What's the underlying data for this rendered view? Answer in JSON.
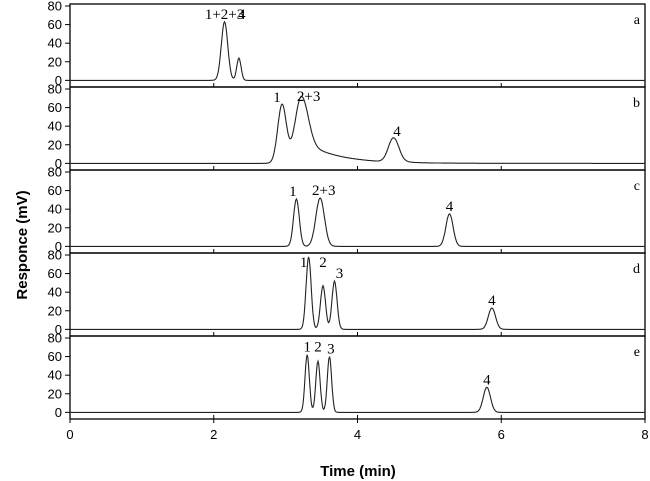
{
  "chart_data": {
    "type": "line",
    "xlabel": "Time (min)",
    "ylabel": "Responce (mV)",
    "xlim": [
      0,
      8
    ],
    "xticks": [
      "0",
      "2",
      "4",
      "6",
      "8"
    ],
    "ylim": [
      -5,
      80
    ],
    "yticks": [
      "0",
      "20",
      "40",
      "60",
      "80"
    ],
    "grid": false,
    "panels": [
      {
        "label": "a",
        "peaks": [
          {
            "t": 2.15,
            "h": 63,
            "w": 0.045,
            "tail": 0
          },
          {
            "t": 2.35,
            "h": 24,
            "w": 0.03,
            "tail": 0
          }
        ],
        "peak_labels": [
          {
            "text": "1+2+3",
            "t": 2.15
          },
          {
            "text": "4",
            "t": 2.39
          }
        ]
      },
      {
        "label": "b",
        "peaks": [
          {
            "t": 2.95,
            "h": 63,
            "w": 0.06,
            "tail": 0
          },
          {
            "t": 3.22,
            "h": 72,
            "w": 0.09,
            "tail": 0.45
          },
          {
            "t": 4.5,
            "h": 26,
            "w": 0.07,
            "tail": 0.08
          }
        ],
        "peak_labels": [
          {
            "text": "1",
            "t": 2.88
          },
          {
            "text": "2+3",
            "t": 3.32
          },
          {
            "text": "4",
            "t": 4.55
          }
        ]
      },
      {
        "label": "c",
        "peaks": [
          {
            "t": 3.15,
            "h": 51,
            "w": 0.04,
            "tail": 0
          },
          {
            "t": 3.48,
            "h": 52,
            "w": 0.06,
            "tail": 0
          },
          {
            "t": 5.28,
            "h": 35,
            "w": 0.05,
            "tail": 0
          }
        ],
        "peak_labels": [
          {
            "text": "1",
            "t": 3.1
          },
          {
            "text": "2+3",
            "t": 3.53
          },
          {
            "text": "4",
            "t": 5.28
          }
        ]
      },
      {
        "label": "d",
        "peaks": [
          {
            "t": 3.32,
            "h": 78,
            "w": 0.035,
            "tail": 0
          },
          {
            "t": 3.52,
            "h": 47,
            "w": 0.035,
            "tail": 0
          },
          {
            "t": 3.68,
            "h": 52,
            "w": 0.035,
            "tail": 0
          },
          {
            "t": 5.87,
            "h": 23,
            "w": 0.05,
            "tail": 0
          }
        ],
        "peak_labels": [
          {
            "text": "1",
            "t": 3.25
          },
          {
            "text": "2",
            "t": 3.52
          },
          {
            "text": "3",
            "t": 3.75
          },
          {
            "text": "4",
            "t": 5.87
          }
        ]
      },
      {
        "label": "e",
        "peaks": [
          {
            "t": 3.3,
            "h": 62,
            "w": 0.03,
            "tail": 0
          },
          {
            "t": 3.45,
            "h": 55,
            "w": 0.03,
            "tail": 0
          },
          {
            "t": 3.61,
            "h": 60,
            "w": 0.03,
            "tail": 0
          },
          {
            "t": 5.8,
            "h": 27,
            "w": 0.05,
            "tail": 0
          }
        ],
        "peak_labels": [
          {
            "text": "1",
            "t": 3.3
          },
          {
            "text": "2",
            "t": 3.45
          },
          {
            "text": "3",
            "t": 3.63
          },
          {
            "text": "4",
            "t": 5.8
          }
        ]
      }
    ]
  }
}
